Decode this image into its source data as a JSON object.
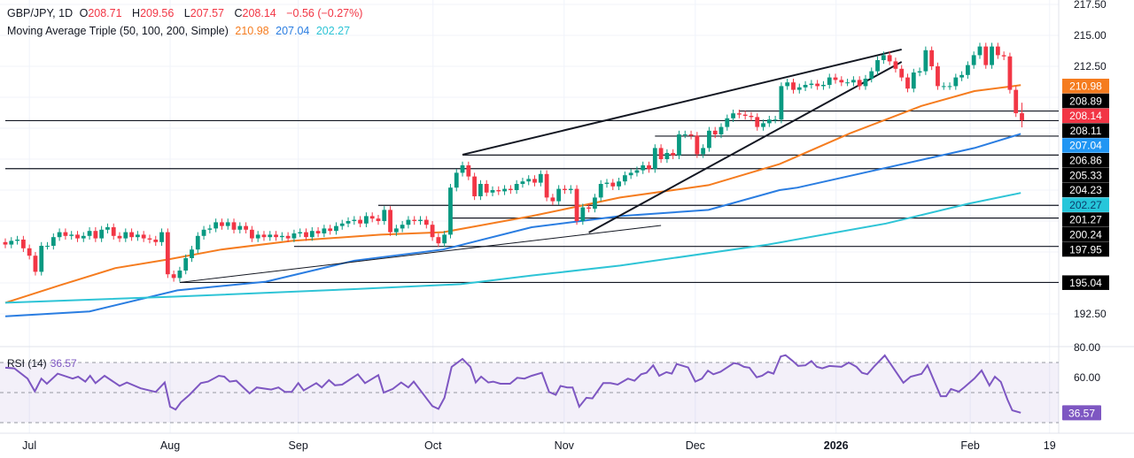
{
  "header": {
    "symbol": "GBP/JPY, 1D",
    "o_label": "O",
    "open": "208.71",
    "h_label": "H",
    "high": "209.56",
    "l_label": "L",
    "low": "207.57",
    "c_label": "C",
    "close": "208.14",
    "change": "−0.56 (−0.27%)"
  },
  "ma_legend": {
    "label": "Moving Average Triple (50, 100, 200, Simple)",
    "ma50": "210.98",
    "ma100": "207.04",
    "ma200": "202.27"
  },
  "rsi_legend": {
    "label": "RSI (14)",
    "value": "36.57"
  },
  "colors": {
    "up": "#089981",
    "down": "#f23645",
    "ma50": "#f57c1f",
    "ma100": "#2a7de1",
    "ma200": "#2ec4d6",
    "rsi": "#7e57c2",
    "level": "#131722"
  },
  "chart_data": {
    "type": "candlestick",
    "symbol": "GBP/JPY",
    "timeframe": "1D",
    "y_range": [
      190.5,
      217.8
    ],
    "y_ticks": [
      "217.50",
      "215.00",
      "212.50",
      "192.50"
    ],
    "x_ticks": [
      {
        "label": "Jul",
        "index": 4
      },
      {
        "label": "Aug",
        "index": 27.4
      },
      {
        "label": "Sep",
        "index": 48.7
      },
      {
        "label": "Oct",
        "index": 71.1
      },
      {
        "label": "Nov",
        "index": 92.9
      },
      {
        "label": "Dec",
        "index": 114.7
      },
      {
        "label": "2026",
        "index": 138.1,
        "bold": true
      },
      {
        "label": "Feb",
        "index": 160.4
      },
      {
        "label": "19",
        "index": 173.6
      }
    ],
    "close": [
      198.1,
      198.4,
      198.5,
      197.8,
      197.2,
      195.9,
      198.0,
      198.0,
      198.7,
      199.1,
      198.8,
      198.9,
      198.6,
      198.8,
      199.2,
      198.6,
      199.3,
      199.5,
      198.8,
      198.6,
      199.1,
      198.7,
      198.9,
      198.6,
      198.5,
      198.3,
      199.1,
      195.7,
      195.4,
      196.0,
      197.0,
      197.7,
      198.8,
      199.3,
      199.4,
      199.9,
      199.6,
      199.9,
      199.3,
      199.6,
      199.3,
      198.6,
      198.9,
      198.7,
      198.9,
      198.7,
      198.8,
      198.6,
      199.0,
      199.1,
      198.7,
      199.2,
      199.0,
      199.4,
      199.2,
      199.6,
      199.8,
      200.0,
      200.1,
      199.8,
      200.4,
      200.2,
      200.0,
      200.9,
      199.1,
      199.4,
      199.7,
      200.1,
      200.0,
      200.1,
      199.7,
      198.7,
      198.2,
      198.9,
      202.7,
      203.9,
      204.5,
      203.6,
      202.0,
      203.0,
      202.3,
      202.5,
      202.4,
      202.6,
      202.5,
      203.0,
      203.2,
      203.4,
      203.1,
      203.8,
      201.9,
      201.6,
      202.6,
      202.5,
      202.6,
      200.0,
      201.1,
      201.0,
      201.9,
      203.0,
      203.1,
      202.8,
      203.2,
      203.7,
      203.9,
      204.1,
      204.5,
      204.2,
      205.9,
      205.0,
      205.5,
      205.3,
      207.0,
      207.0,
      206.9,
      205.4,
      205.9,
      207.3,
      207.0,
      207.6,
      208.3,
      208.7,
      208.6,
      208.5,
      208.4,
      207.6,
      207.9,
      208.2,
      208.2,
      210.9,
      211.2,
      210.6,
      210.8,
      211.0,
      211.1,
      210.9,
      211.0,
      211.6,
      211.4,
      211.2,
      211.2,
      211.4,
      210.9,
      211.5,
      212.1,
      213.0,
      213.4,
      212.9,
      212.3,
      211.6,
      210.7,
      212.0,
      212.1,
      213.8,
      212.5,
      210.9,
      210.9,
      210.9,
      211.6,
      211.8,
      212.6,
      213.4,
      214.1,
      212.6,
      214.1,
      213.4,
      213.3,
      210.6,
      208.71,
      208.14
    ],
    "last_candle": {
      "open": 208.71,
      "high": 209.56,
      "low": 207.57,
      "close": 208.14
    },
    "moving_averages": [
      {
        "name": "SMA 50",
        "value": 210.98,
        "color": "#f57c1f",
        "points": [
          [
            0,
            193.4
          ],
          [
            9,
            194.8
          ],
          [
            18.3,
            196.2
          ],
          [
            27.1,
            196.9
          ],
          [
            35.9,
            197.7
          ],
          [
            47.7,
            198.4
          ],
          [
            62.4,
            198.9
          ],
          [
            72.8,
            199.1
          ],
          [
            87.5,
            200.4
          ],
          [
            102.2,
            201.9
          ],
          [
            116.9,
            202.9
          ],
          [
            128.7,
            204.6
          ],
          [
            140.5,
            207.1
          ],
          [
            152.3,
            209.3
          ],
          [
            161.1,
            210.5
          ],
          [
            168.8,
            210.98
          ]
        ]
      },
      {
        "name": "SMA 100",
        "value": 207.04,
        "color": "#2a7de1",
        "points": [
          [
            0,
            192.3
          ],
          [
            14,
            192.7
          ],
          [
            28.6,
            194.4
          ],
          [
            43.3,
            195.1
          ],
          [
            58,
            196.8
          ],
          [
            72.8,
            197.7
          ],
          [
            87.5,
            199.5
          ],
          [
            102.2,
            200.4
          ],
          [
            116.9,
            200.9
          ],
          [
            128.7,
            202.5
          ],
          [
            131.7,
            202.7
          ],
          [
            146.4,
            204.3
          ],
          [
            161.1,
            205.9
          ],
          [
            168.8,
            207.04
          ]
        ]
      },
      {
        "name": "SMA 200",
        "value": 202.27,
        "color": "#2ec4d6",
        "points": [
          [
            0,
            193.4
          ],
          [
            28.6,
            193.9
          ],
          [
            58,
            194.5
          ],
          [
            75.7,
            194.9
          ],
          [
            87.5,
            195.6
          ],
          [
            102.2,
            196.4
          ],
          [
            126.8,
            198.1
          ],
          [
            146.4,
            199.8
          ],
          [
            160.1,
            201.4
          ],
          [
            168.8,
            202.27
          ]
        ]
      }
    ],
    "levels": [
      {
        "price": 208.89,
        "from_index": 122
      },
      {
        "price": 208.11,
        "from_index": 0
      },
      {
        "price": 206.86,
        "from_index": 108
      },
      {
        "price": 205.33,
        "from_index": 76
      },
      {
        "price": 204.23,
        "from_index": 0
      },
      {
        "price": 201.27,
        "from_index": 62
      },
      {
        "price": 200.24,
        "from_index": 74
      },
      {
        "price": 197.95,
        "from_index": 48
      },
      {
        "price": 195.04,
        "from_index": 29
      }
    ],
    "trendlines": [
      {
        "from": [
          76,
          205.36
        ],
        "to": [
          149,
          213.86
        ],
        "weight": "thick"
      },
      {
        "from": [
          97,
          199.07
        ],
        "to": [
          149,
          212.86
        ],
        "weight": "thick"
      },
      {
        "from": [
          29,
          195.04
        ],
        "to": [
          109,
          199.64
        ],
        "weight": "thin"
      }
    ],
    "price_badges": [
      {
        "value": "210.98",
        "bg": "#f57c1f",
        "fg": "#ffffff"
      },
      {
        "value": "208.89",
        "bg": "#000000",
        "fg": "#ffffff"
      },
      {
        "value": "208.14",
        "bg": "#f23645",
        "fg": "#ffffff"
      },
      {
        "value": "208.11",
        "bg": "#000000",
        "fg": "#ffffff"
      },
      {
        "value": "207.04",
        "bg": "#2196f3",
        "fg": "#ffffff"
      },
      {
        "value": "206.86",
        "bg": "#000000",
        "fg": "#ffffff"
      },
      {
        "value": "205.33",
        "bg": "#000000",
        "fg": "#ffffff"
      },
      {
        "value": "204.23",
        "bg": "#000000",
        "fg": "#ffffff"
      },
      {
        "value": "202.27",
        "bg": "#26c6da",
        "fg": "#0b3d6b"
      },
      {
        "value": "201.27",
        "bg": "#000000",
        "fg": "#ffffff"
      },
      {
        "value": "200.24",
        "bg": "#000000",
        "fg": "#ffffff"
      },
      {
        "value": "197.95",
        "bg": "#000000",
        "fg": "#ffffff"
      },
      {
        "value": "195.04",
        "bg": "#000000",
        "fg": "#ffffff"
      }
    ],
    "rsi": {
      "period": 14,
      "value": 36.57,
      "y_ticks": [
        "80.00",
        "60.00"
      ],
      "bands": [
        70,
        50,
        30
      ],
      "points": [
        [
          0,
          66.5
        ],
        [
          1.5,
          66.1
        ],
        [
          3.7,
          59.3
        ],
        [
          4.9,
          50.8
        ],
        [
          6,
          59.3
        ],
        [
          6.9,
          55.9
        ],
        [
          8.7,
          62.6
        ],
        [
          11.2,
          59.3
        ],
        [
          12.1,
          60.6
        ],
        [
          13.3,
          57.3
        ],
        [
          14.1,
          61.2
        ],
        [
          15,
          56.3
        ],
        [
          16.5,
          61.2
        ],
        [
          19,
          54.4
        ],
        [
          20.2,
          56.7
        ],
        [
          22.5,
          52.8
        ],
        [
          25,
          50.4
        ],
        [
          26.5,
          56.7
        ],
        [
          27.4,
          40.6
        ],
        [
          28.3,
          38.7
        ],
        [
          29.2,
          43.6
        ],
        [
          30.6,
          48.5
        ],
        [
          32.5,
          56.3
        ],
        [
          33.7,
          57.3
        ],
        [
          35.5,
          61.2
        ],
        [
          36.4,
          60.6
        ],
        [
          37.3,
          57.3
        ],
        [
          38.4,
          57.9
        ],
        [
          40.6,
          49.5
        ],
        [
          41.8,
          53.4
        ],
        [
          44.2,
          52
        ],
        [
          45.4,
          53.4
        ],
        [
          46.5,
          50.4
        ],
        [
          47.6,
          50.4
        ],
        [
          48.7,
          56.3
        ],
        [
          49.6,
          51.4
        ],
        [
          51.7,
          56.3
        ],
        [
          52.6,
          53.4
        ],
        [
          53.8,
          58.3
        ],
        [
          54.8,
          54.8
        ],
        [
          56,
          55.3
        ],
        [
          58.6,
          62.2
        ],
        [
          59.8,
          56.3
        ],
        [
          62,
          61.6
        ],
        [
          62.9,
          50
        ],
        [
          64.4,
          52.4
        ],
        [
          65.8,
          56.7
        ],
        [
          67,
          53.4
        ],
        [
          67.9,
          57.3
        ],
        [
          69.2,
          50.4
        ],
        [
          71,
          41
        ],
        [
          72,
          39.1
        ],
        [
          73,
          46.5
        ],
        [
          74.2,
          67.1
        ],
        [
          76,
          72.4
        ],
        [
          77.3,
          67.1
        ],
        [
          78.2,
          56.7
        ],
        [
          79.1,
          60.6
        ],
        [
          80.3,
          56.7
        ],
        [
          81.1,
          57.3
        ],
        [
          82.3,
          55.9
        ],
        [
          83.9,
          55.9
        ],
        [
          85.1,
          59.8
        ],
        [
          86.3,
          59.3
        ],
        [
          87.5,
          61.2
        ],
        [
          89.2,
          63.2
        ],
        [
          90.4,
          50.4
        ],
        [
          91.5,
          48.5
        ],
        [
          92.3,
          54.4
        ],
        [
          93.4,
          53.4
        ],
        [
          94.3,
          53.4
        ],
        [
          95.4,
          40.6
        ],
        [
          96.6,
          46.5
        ],
        [
          97.6,
          46.1
        ],
        [
          99.4,
          56.3
        ],
        [
          100.6,
          56.3
        ],
        [
          101.8,
          55.3
        ],
        [
          103.5,
          59.3
        ],
        [
          104.6,
          57.9
        ],
        [
          105.7,
          62.2
        ],
        [
          106.6,
          63.2
        ],
        [
          107.7,
          68.1
        ],
        [
          108.7,
          61.2
        ],
        [
          109.9,
          63.6
        ],
        [
          110.8,
          62.6
        ],
        [
          111.6,
          69
        ],
        [
          113.5,
          66.7
        ],
        [
          114.7,
          57.3
        ],
        [
          115.8,
          59.3
        ],
        [
          116.8,
          64.6
        ],
        [
          117.7,
          62.2
        ],
        [
          118.9,
          63.8
        ],
        [
          121.1,
          69.6
        ],
        [
          121.9,
          69
        ],
        [
          122.8,
          67.1
        ],
        [
          123.7,
          66.5
        ],
        [
          124.9,
          60.2
        ],
        [
          125.8,
          61.2
        ],
        [
          126.8,
          63.8
        ],
        [
          127.7,
          62.6
        ],
        [
          128.9,
          74
        ],
        [
          129.7,
          74.9
        ],
        [
          130.9,
          71
        ],
        [
          131.8,
          67.7
        ],
        [
          133,
          68.1
        ],
        [
          134,
          71
        ],
        [
          134.9,
          67.1
        ],
        [
          135.8,
          66.1
        ],
        [
          137,
          67.7
        ],
        [
          139,
          67.1
        ],
        [
          140.2,
          70
        ],
        [
          141.5,
          67.1
        ],
        [
          142.4,
          63.2
        ],
        [
          143.3,
          62.2
        ],
        [
          144.5,
          67.7
        ],
        [
          146.2,
          74.7
        ],
        [
          149.3,
          56.5
        ],
        [
          150.5,
          60.6
        ],
        [
          152.3,
          62.4
        ],
        [
          153.3,
          68.2
        ],
        [
          155.5,
          47.6
        ],
        [
          156.4,
          47.6
        ],
        [
          157.2,
          52.4
        ],
        [
          158.5,
          50.6
        ],
        [
          159.4,
          53.5
        ],
        [
          161.1,
          59.4
        ],
        [
          162.3,
          64.7
        ],
        [
          163.6,
          54.7
        ],
        [
          164.5,
          60.6
        ],
        [
          165.5,
          57.1
        ],
        [
          166.6,
          45.3
        ],
        [
          167.4,
          38.2
        ],
        [
          168.8,
          36.57
        ]
      ]
    }
  }
}
